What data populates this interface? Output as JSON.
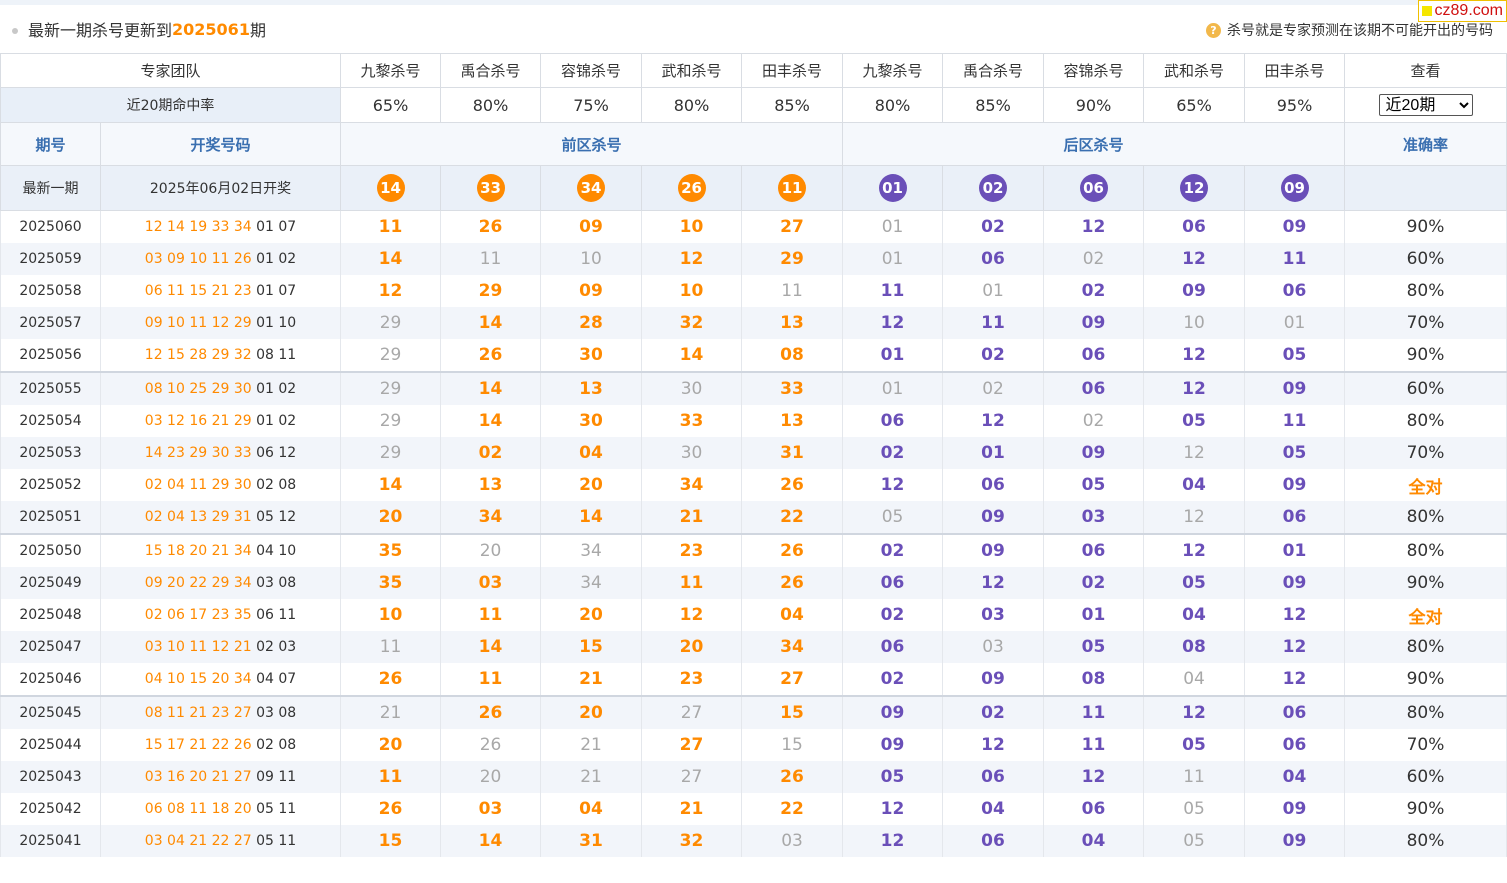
{
  "header": {
    "title_prefix": "最新一期杀号更新到",
    "title_issue": "2025061",
    "title_suffix": "期",
    "note": "杀号就是专家预测在该期不可能开出的号码",
    "note_icon": "question-icon",
    "watermark": "cz89.com"
  },
  "experts": {
    "label": "专家团队",
    "names": [
      "九黎杀号",
      "禹合杀号",
      "容锦杀号",
      "武和杀号",
      "田丰杀号",
      "九黎杀号",
      "禹合杀号",
      "容锦杀号",
      "武和杀号",
      "田丰杀号"
    ],
    "view_label": "查看",
    "rate_label": "近20期命中率",
    "rates": [
      "65%",
      "80%",
      "75%",
      "80%",
      "85%",
      "80%",
      "85%",
      "90%",
      "65%",
      "95%"
    ],
    "select_value": "近20期"
  },
  "columns": {
    "issue": "期号",
    "draw": "开奖号码",
    "front": "前区杀号",
    "back": "后区杀号",
    "accuracy": "准确率"
  },
  "latest": {
    "label": "最新一期",
    "date": "2025年06月02日开奖",
    "front": [
      "14",
      "33",
      "34",
      "26",
      "11"
    ],
    "back": [
      "01",
      "02",
      "06",
      "12",
      "09"
    ]
  },
  "colors": {
    "front": "#ff8a00",
    "back": "#6a4fb8",
    "miss": "#a8a8a8",
    "header_blue": "#3a6fb0"
  },
  "rows": [
    {
      "issue": "2025060",
      "front_draw": "12 14 19 33 34",
      "back_draw": "01 07",
      "front": [
        [
          "11",
          1
        ],
        [
          "26",
          1
        ],
        [
          "09",
          1
        ],
        [
          "10",
          1
        ],
        [
          "27",
          1
        ]
      ],
      "back": [
        [
          "01",
          0
        ],
        [
          "02",
          1
        ],
        [
          "12",
          1
        ],
        [
          "06",
          1
        ],
        [
          "09",
          1
        ]
      ],
      "acc": "90%"
    },
    {
      "issue": "2025059",
      "front_draw": "03 09 10 11 26",
      "back_draw": "01 02",
      "front": [
        [
          "14",
          1
        ],
        [
          "11",
          0
        ],
        [
          "10",
          0
        ],
        [
          "12",
          1
        ],
        [
          "29",
          1
        ]
      ],
      "back": [
        [
          "01",
          0
        ],
        [
          "06",
          1
        ],
        [
          "02",
          0
        ],
        [
          "12",
          1
        ],
        [
          "11",
          1
        ]
      ],
      "acc": "60%"
    },
    {
      "issue": "2025058",
      "front_draw": "06 11 15 21 23",
      "back_draw": "01 07",
      "front": [
        [
          "12",
          1
        ],
        [
          "29",
          1
        ],
        [
          "09",
          1
        ],
        [
          "10",
          1
        ],
        [
          "11",
          0
        ]
      ],
      "back": [
        [
          "11",
          1
        ],
        [
          "01",
          0
        ],
        [
          "02",
          1
        ],
        [
          "09",
          1
        ],
        [
          "06",
          1
        ]
      ],
      "acc": "80%"
    },
    {
      "issue": "2025057",
      "front_draw": "09 10 11 12 29",
      "back_draw": "01 10",
      "front": [
        [
          "29",
          0
        ],
        [
          "14",
          1
        ],
        [
          "28",
          1
        ],
        [
          "32",
          1
        ],
        [
          "13",
          1
        ]
      ],
      "back": [
        [
          "12",
          1
        ],
        [
          "11",
          1
        ],
        [
          "09",
          1
        ],
        [
          "10",
          0
        ],
        [
          "01",
          0
        ]
      ],
      "acc": "70%"
    },
    {
      "issue": "2025056",
      "front_draw": "12 15 28 29 32",
      "back_draw": "08 11",
      "front": [
        [
          "29",
          0
        ],
        [
          "26",
          1
        ],
        [
          "30",
          1
        ],
        [
          "14",
          1
        ],
        [
          "08",
          1
        ]
      ],
      "back": [
        [
          "01",
          1
        ],
        [
          "02",
          1
        ],
        [
          "06",
          1
        ],
        [
          "12",
          1
        ],
        [
          "05",
          1
        ]
      ],
      "acc": "90%"
    },
    {
      "issue": "2025055",
      "front_draw": "08 10 25 29 30",
      "back_draw": "01 02",
      "front": [
        [
          "29",
          0
        ],
        [
          "14",
          1
        ],
        [
          "13",
          1
        ],
        [
          "30",
          0
        ],
        [
          "33",
          1
        ]
      ],
      "back": [
        [
          "01",
          0
        ],
        [
          "02",
          0
        ],
        [
          "06",
          1
        ],
        [
          "12",
          1
        ],
        [
          "09",
          1
        ]
      ],
      "acc": "60%"
    },
    {
      "issue": "2025054",
      "front_draw": "03 12 16 21 29",
      "back_draw": "01 02",
      "front": [
        [
          "29",
          0
        ],
        [
          "14",
          1
        ],
        [
          "30",
          1
        ],
        [
          "33",
          1
        ],
        [
          "13",
          1
        ]
      ],
      "back": [
        [
          "06",
          1
        ],
        [
          "12",
          1
        ],
        [
          "02",
          0
        ],
        [
          "05",
          1
        ],
        [
          "11",
          1
        ]
      ],
      "acc": "80%"
    },
    {
      "issue": "2025053",
      "front_draw": "14 23 29 30 33",
      "back_draw": "06 12",
      "front": [
        [
          "29",
          0
        ],
        [
          "02",
          1
        ],
        [
          "04",
          1
        ],
        [
          "30",
          0
        ],
        [
          "31",
          1
        ]
      ],
      "back": [
        [
          "02",
          1
        ],
        [
          "01",
          1
        ],
        [
          "09",
          1
        ],
        [
          "12",
          0
        ],
        [
          "05",
          1
        ]
      ],
      "acc": "70%"
    },
    {
      "issue": "2025052",
      "front_draw": "02 04 11 29 30",
      "back_draw": "02 08",
      "front": [
        [
          "14",
          1
        ],
        [
          "13",
          1
        ],
        [
          "20",
          1
        ],
        [
          "34",
          1
        ],
        [
          "26",
          1
        ]
      ],
      "back": [
        [
          "12",
          1
        ],
        [
          "06",
          1
        ],
        [
          "05",
          1
        ],
        [
          "04",
          1
        ],
        [
          "09",
          1
        ]
      ],
      "acc": "全对"
    },
    {
      "issue": "2025051",
      "front_draw": "02 04 13 29 31",
      "back_draw": "05 12",
      "front": [
        [
          "20",
          1
        ],
        [
          "34",
          1
        ],
        [
          "14",
          1
        ],
        [
          "21",
          1
        ],
        [
          "22",
          1
        ]
      ],
      "back": [
        [
          "05",
          0
        ],
        [
          "09",
          1
        ],
        [
          "03",
          1
        ],
        [
          "12",
          0
        ],
        [
          "06",
          1
        ]
      ],
      "acc": "80%"
    },
    {
      "issue": "2025050",
      "front_draw": "15 18 20 21 34",
      "back_draw": "04 10",
      "front": [
        [
          "35",
          1
        ],
        [
          "20",
          0
        ],
        [
          "34",
          0
        ],
        [
          "23",
          1
        ],
        [
          "26",
          1
        ]
      ],
      "back": [
        [
          "02",
          1
        ],
        [
          "09",
          1
        ],
        [
          "06",
          1
        ],
        [
          "12",
          1
        ],
        [
          "01",
          1
        ]
      ],
      "acc": "80%"
    },
    {
      "issue": "2025049",
      "front_draw": "09 20 22 29 34",
      "back_draw": "03 08",
      "front": [
        [
          "35",
          1
        ],
        [
          "03",
          1
        ],
        [
          "34",
          0
        ],
        [
          "11",
          1
        ],
        [
          "26",
          1
        ]
      ],
      "back": [
        [
          "06",
          1
        ],
        [
          "12",
          1
        ],
        [
          "02",
          1
        ],
        [
          "05",
          1
        ],
        [
          "09",
          1
        ]
      ],
      "acc": "90%"
    },
    {
      "issue": "2025048",
      "front_draw": "02 06 17 23 35",
      "back_draw": "06 11",
      "front": [
        [
          "10",
          1
        ],
        [
          "11",
          1
        ],
        [
          "20",
          1
        ],
        [
          "12",
          1
        ],
        [
          "04",
          1
        ]
      ],
      "back": [
        [
          "02",
          1
        ],
        [
          "03",
          1
        ],
        [
          "01",
          1
        ],
        [
          "04",
          1
        ],
        [
          "12",
          1
        ]
      ],
      "acc": "全对"
    },
    {
      "issue": "2025047",
      "front_draw": "03 10 11 12 21",
      "back_draw": "02 03",
      "front": [
        [
          "11",
          0
        ],
        [
          "14",
          1
        ],
        [
          "15",
          1
        ],
        [
          "20",
          1
        ],
        [
          "34",
          1
        ]
      ],
      "back": [
        [
          "06",
          1
        ],
        [
          "03",
          0
        ],
        [
          "05",
          1
        ],
        [
          "08",
          1
        ],
        [
          "12",
          1
        ]
      ],
      "acc": "80%"
    },
    {
      "issue": "2025046",
      "front_draw": "04 10 15 20 34",
      "back_draw": "04 07",
      "front": [
        [
          "26",
          1
        ],
        [
          "11",
          1
        ],
        [
          "21",
          1
        ],
        [
          "23",
          1
        ],
        [
          "27",
          1
        ]
      ],
      "back": [
        [
          "02",
          1
        ],
        [
          "09",
          1
        ],
        [
          "08",
          1
        ],
        [
          "04",
          0
        ],
        [
          "12",
          1
        ]
      ],
      "acc": "90%"
    },
    {
      "issue": "2025045",
      "front_draw": "08 11 21 23 27",
      "back_draw": "03 08",
      "front": [
        [
          "21",
          0
        ],
        [
          "26",
          1
        ],
        [
          "20",
          1
        ],
        [
          "27",
          0
        ],
        [
          "15",
          1
        ]
      ],
      "back": [
        [
          "09",
          1
        ],
        [
          "02",
          1
        ],
        [
          "11",
          1
        ],
        [
          "12",
          1
        ],
        [
          "06",
          1
        ]
      ],
      "acc": "80%"
    },
    {
      "issue": "2025044",
      "front_draw": "15 17 21 22 26",
      "back_draw": "02 08",
      "front": [
        [
          "20",
          1
        ],
        [
          "26",
          0
        ],
        [
          "21",
          0
        ],
        [
          "27",
          1
        ],
        [
          "15",
          0
        ]
      ],
      "back": [
        [
          "09",
          1
        ],
        [
          "12",
          1
        ],
        [
          "11",
          1
        ],
        [
          "05",
          1
        ],
        [
          "06",
          1
        ]
      ],
      "acc": "70%"
    },
    {
      "issue": "2025043",
      "front_draw": "03 16 20 21 27",
      "back_draw": "09 11",
      "front": [
        [
          "11",
          1
        ],
        [
          "20",
          0
        ],
        [
          "21",
          0
        ],
        [
          "27",
          0
        ],
        [
          "26",
          1
        ]
      ],
      "back": [
        [
          "05",
          1
        ],
        [
          "06",
          1
        ],
        [
          "12",
          1
        ],
        [
          "11",
          0
        ],
        [
          "04",
          1
        ]
      ],
      "acc": "60%"
    },
    {
      "issue": "2025042",
      "front_draw": "06 08 11 18 20",
      "back_draw": "05 11",
      "front": [
        [
          "26",
          1
        ],
        [
          "03",
          1
        ],
        [
          "04",
          1
        ],
        [
          "21",
          1
        ],
        [
          "22",
          1
        ]
      ],
      "back": [
        [
          "12",
          1
        ],
        [
          "04",
          1
        ],
        [
          "06",
          1
        ],
        [
          "05",
          0
        ],
        [
          "09",
          1
        ]
      ],
      "acc": "90%"
    },
    {
      "issue": "2025041",
      "front_draw": "03 04 21 22 27",
      "back_draw": "05 11",
      "front": [
        [
          "15",
          1
        ],
        [
          "14",
          1
        ],
        [
          "31",
          1
        ],
        [
          "32",
          1
        ],
        [
          "03",
          0
        ]
      ],
      "back": [
        [
          "12",
          1
        ],
        [
          "06",
          1
        ],
        [
          "04",
          1
        ],
        [
          "05",
          0
        ],
        [
          "09",
          1
        ]
      ],
      "acc": "80%"
    }
  ]
}
